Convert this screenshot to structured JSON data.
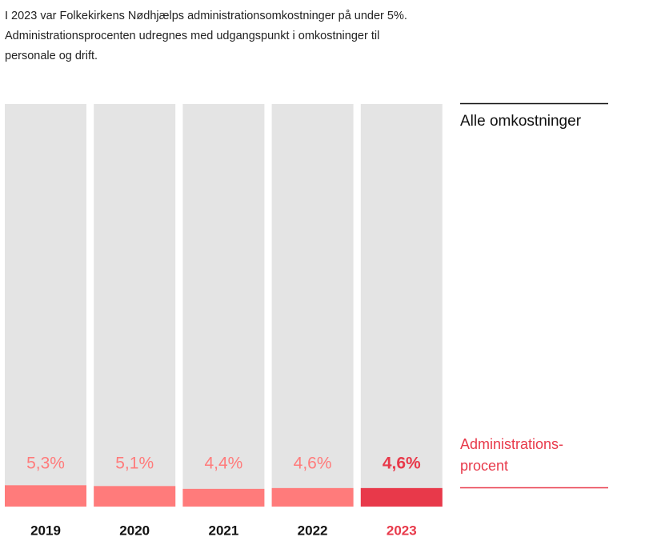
{
  "chart_data": {
    "type": "bar",
    "title": "I 2023 var Folkekirkens Nødhjælps administrationsomkostninger på under 5%. Administrationsprocenten udregnes med udgangspunkt i omkostninger til personale og drift.",
    "categories": [
      "2019",
      "2020",
      "2021",
      "2022",
      "2023"
    ],
    "series": [
      {
        "name": "Alle omkostninger",
        "color": "#e4e4e4",
        "values": [
          100,
          100,
          100,
          100,
          100
        ]
      },
      {
        "name": "Administrations-procent",
        "color": "#ff7b7b",
        "colors": [
          "#ff7b7b",
          "#ff7b7b",
          "#ff7b7b",
          "#ff7b7b",
          "#e8394a"
        ],
        "values": [
          5.3,
          5.1,
          4.4,
          4.6,
          4.6
        ],
        "value_labels": [
          "5,3%",
          "5,1%",
          "4,4%",
          "4,6%",
          "4,6%"
        ]
      }
    ],
    "ylim": [
      0,
      100
    ]
  }
}
